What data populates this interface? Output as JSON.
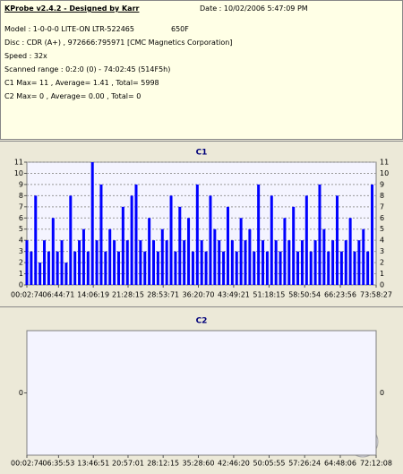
{
  "header": {
    "title": "KProbe v2.4.2 - Designed by Karr",
    "date": "Date : 10/02/2006 5:47:09 PM",
    "model": "Model : 1-0-0-0 LITE-ON LTR-522465",
    "firmware": "650F",
    "lines": [
      "Disc : CDR (A+) , 972666:795971 [CMC Magnetics Corporation]",
      "Speed : 32x",
      "Scanned range : 0:2:0 (0) - 74:02:45 (514F5h)",
      "C1 Max= 11 , Average= 1.41 , Total= 5998",
      "C2 Max= 0 , Average= 0.00 , Total= 0"
    ]
  },
  "chart_data": [
    {
      "type": "bar",
      "title": "C1",
      "color": "#0000ff",
      "grid": true,
      "x": [
        3,
        58.5,
        114,
        169.5,
        225,
        280.5,
        336,
        391.5,
        447,
        502.5,
        558,
        613.5,
        669,
        724.5,
        780,
        835.5,
        891,
        946.5,
        1002,
        1057.5,
        1113,
        1168.5,
        1224,
        1279.5,
        1335,
        1390.5,
        1446,
        1501.5,
        1557,
        1612.5,
        1668,
        1723.5,
        1779,
        1834.5,
        1890,
        1945.5,
        2001,
        2056.5,
        2112,
        2167.5,
        2223,
        2278.5,
        2334,
        2389.5,
        2445,
        2500.5,
        2556,
        2611.5,
        2667,
        2722.5,
        2778,
        2833.5,
        2889,
        2944.5,
        3000,
        3055.5,
        3111,
        3166.5,
        3222,
        3277.5,
        3333,
        3388.5,
        3444,
        3499.5,
        3555,
        3610.5,
        3666,
        3721.5,
        3777,
        3832.5,
        3888,
        3943.5,
        3999,
        4054.5,
        4110,
        4165.5,
        4221,
        4276.5,
        4332,
        4387.5
      ],
      "values": [
        4,
        3,
        8,
        2,
        4,
        3,
        6,
        3,
        4,
        2,
        8,
        3,
        4,
        5,
        3,
        11,
        4,
        9,
        3,
        5,
        4,
        3,
        7,
        4,
        8,
        9,
        4,
        3,
        6,
        4,
        3,
        5,
        4,
        8,
        3,
        7,
        4,
        6,
        3,
        9,
        4,
        3,
        8,
        5,
        4,
        3,
        7,
        4,
        3,
        6,
        4,
        5,
        3,
        9,
        4,
        3,
        8,
        4,
        3,
        6,
        4,
        7,
        3,
        4,
        8,
        3,
        4,
        9,
        5,
        3,
        4,
        8,
        3,
        4,
        6,
        3,
        4,
        5,
        3,
        9
      ],
      "xlim": [
        2.99,
        4438.36
      ],
      "xticks": [
        {
          "value": 2.99,
          "label": "00:02:74"
        },
        {
          "value": 404.95,
          "label": "06:44:71"
        },
        {
          "value": 846.25,
          "label": "14:06:19"
        },
        {
          "value": 1288.2,
          "label": "21:28:15"
        },
        {
          "value": 1733.95,
          "label": "28:53:71"
        },
        {
          "value": 2180.93,
          "label": "36:20:70"
        },
        {
          "value": 2629.28,
          "label": "43:49:21"
        },
        {
          "value": 3078.2,
          "label": "51:18:15"
        },
        {
          "value": 3530.72,
          "label": "58:50:54"
        },
        {
          "value": 3983.75,
          "label": "66:23:56"
        },
        {
          "value": 4438.36,
          "label": "73:58:27"
        }
      ],
      "ylim": [
        0,
        11
      ],
      "yticks": [
        0,
        1,
        2,
        3,
        4,
        5,
        6,
        7,
        8,
        9,
        10,
        11
      ]
    },
    {
      "type": "bar",
      "title": "C2",
      "color": "#0000ff",
      "grid": false,
      "xlim": [
        2.99,
        4332.11
      ],
      "xticks": [
        {
          "value": 2.99,
          "label": "00:02:74"
        },
        {
          "value": 395.71,
          "label": "06:35:53"
        },
        {
          "value": 826.68,
          "label": "13:46:51"
        },
        {
          "value": 1257.01,
          "label": "20:57:01"
        },
        {
          "value": 1692.2,
          "label": "28:12:15"
        },
        {
          "value": 2128.8,
          "label": "35:28:60"
        },
        {
          "value": 2566.27,
          "label": "42:46:20"
        },
        {
          "value": 3005.73,
          "label": "50:05:55"
        },
        {
          "value": 3446.32,
          "label": "57:26:24"
        },
        {
          "value": 3888.08,
          "label": "64:48:06"
        },
        {
          "value": 4332.11,
          "label": "72:12:08"
        }
      ],
      "ylim": [
        -1,
        1
      ],
      "yticks": [
        0
      ]
    }
  ]
}
